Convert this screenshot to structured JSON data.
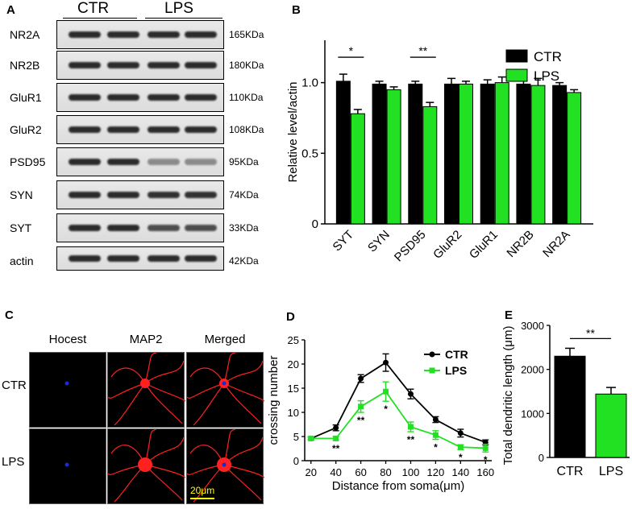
{
  "panel_a": {
    "letter": "A",
    "groups": [
      "CTR",
      "LPS"
    ],
    "rows": [
      {
        "name": "NR2A",
        "kda": "165KDa",
        "lps_intensity": 1.0
      },
      {
        "name": "NR2B",
        "kda": "180KDa",
        "lps_intensity": 1.0
      },
      {
        "name": "GluR1",
        "kda": "110KDa",
        "lps_intensity": 1.0
      },
      {
        "name": "GluR2",
        "kda": "108KDa",
        "lps_intensity": 1.0
      },
      {
        "name": "PSD95",
        "kda": "95KDa",
        "lps_intensity": 0.3
      },
      {
        "name": "SYN",
        "kda": "74KDa",
        "lps_intensity": 0.95
      },
      {
        "name": "SYT",
        "kda": "33KDa",
        "lps_intensity": 0.75
      },
      {
        "name": "actin",
        "kda": "42KDa",
        "lps_intensity": 1.0
      }
    ]
  },
  "panel_c": {
    "letter": "C",
    "columns": [
      "Hocest",
      "MAP2",
      "Merged"
    ],
    "rows": [
      "CTR",
      "LPS"
    ],
    "scale_bar": "20μm",
    "colors": {
      "nucleus": "#1a2bd6",
      "map2": "#ff2020",
      "scale": "#ffff00"
    }
  },
  "chart_data": [
    {
      "panel": "B",
      "type": "bar",
      "title": "",
      "xlabel": "",
      "ylabel": "Relative level/actin",
      "ylim": [
        0,
        1.3
      ],
      "yticks": [
        "0",
        "0.5",
        "1.0"
      ],
      "categories": [
        "SYT",
        "SYN",
        "PSD95",
        "GluR2",
        "GluR1",
        "NR2B",
        "NR2A"
      ],
      "series": [
        {
          "name": "CTR",
          "color": "#000000",
          "values": [
            1.01,
            0.99,
            0.99,
            0.99,
            0.99,
            0.99,
            0.98
          ],
          "errors": [
            0.05,
            0.02,
            0.02,
            0.04,
            0.03,
            0.03,
            0.02
          ]
        },
        {
          "name": "LPS",
          "color": "#22e022",
          "values": [
            0.78,
            0.95,
            0.83,
            0.99,
            1.0,
            0.98,
            0.93
          ],
          "errors": [
            0.03,
            0.02,
            0.03,
            0.02,
            0.04,
            0.05,
            0.02
          ]
        }
      ],
      "annotations": [
        {
          "category": "SYT",
          "text": "*"
        },
        {
          "category": "PSD95",
          "text": "**"
        }
      ],
      "legend_position": "top-right"
    },
    {
      "panel": "D",
      "type": "line",
      "title": "",
      "xlabel": "Distance from soma(μm)",
      "ylabel": "crossing number",
      "xlim": [
        15,
        165
      ],
      "ylim": [
        0,
        25
      ],
      "xticks": [
        20,
        40,
        60,
        80,
        100,
        120,
        140,
        160
      ],
      "yticks": [
        0,
        5,
        10,
        15,
        20,
        25
      ],
      "x": [
        20,
        40,
        60,
        80,
        100,
        120,
        140,
        160
      ],
      "series": [
        {
          "name": "CTR",
          "color": "#000000",
          "values": [
            4.6,
            6.8,
            17.0,
            20.3,
            13.8,
            8.5,
            5.7,
            3.8
          ],
          "errors": [
            0.3,
            0.6,
            0.8,
            1.8,
            1.0,
            0.6,
            0.8,
            0.5
          ]
        },
        {
          "name": "LPS",
          "color": "#22e022",
          "values": [
            4.6,
            4.6,
            11.2,
            14.3,
            7.0,
            5.3,
            2.8,
            2.6
          ],
          "errors": [
            0.3,
            0.4,
            1.2,
            2.0,
            1.0,
            0.9,
            0.5,
            0.8
          ]
        }
      ],
      "annotations": [
        {
          "x": 40,
          "text": "**"
        },
        {
          "x": 60,
          "text": "**"
        },
        {
          "x": 80,
          "text": "*"
        },
        {
          "x": 100,
          "text": "**"
        },
        {
          "x": 120,
          "text": "*"
        },
        {
          "x": 140,
          "text": "*"
        },
        {
          "x": 160,
          "text": "*"
        }
      ],
      "legend_position": "top-right"
    },
    {
      "panel": "E",
      "type": "bar",
      "title": "",
      "xlabel": "",
      "ylabel": "Total dendritic length (μm)",
      "ylim": [
        0,
        3000
      ],
      "yticks": [
        0,
        1000,
        2000,
        3000
      ],
      "categories": [
        "CTR",
        "LPS"
      ],
      "values": [
        2300,
        1440
      ],
      "errors": [
        180,
        150
      ],
      "colors": [
        "#000000",
        "#22e022"
      ],
      "annotations": [
        {
          "text": "**"
        }
      ]
    }
  ]
}
